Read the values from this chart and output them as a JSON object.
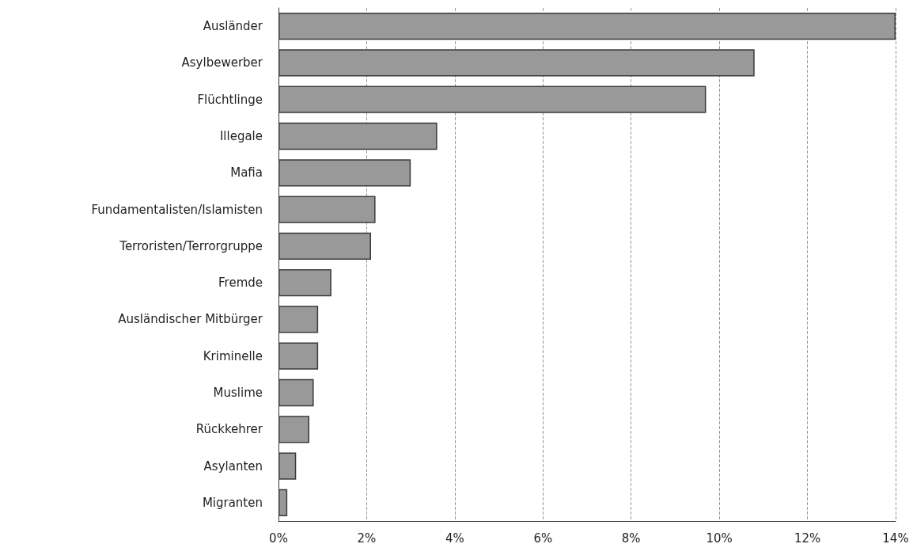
{
  "chart_data": {
    "type": "bar",
    "orientation": "horizontal",
    "categories": [
      "Ausländer",
      "Asylbewerber",
      "Flüchtlinge",
      "Illegale",
      "Mafia",
      "Fundamentalisten/Islamisten",
      "Terroristen/Terrorgruppe",
      "Fremde",
      "Ausländischer Mitbürger",
      "Kriminelle",
      "Muslime",
      "Rückkehrer",
      "Asylanten",
      "Migranten"
    ],
    "values": [
      14,
      10.8,
      9.7,
      3.6,
      3.0,
      2.2,
      2.1,
      1.2,
      0.9,
      0.9,
      0.8,
      0.7,
      0.4,
      0.2
    ],
    "color": "#999999",
    "xlim": [
      0,
      14
    ],
    "xticks": [
      {
        "value": 0,
        "label": "0%"
      },
      {
        "value": 2,
        "label": "2%"
      },
      {
        "value": 4,
        "label": "4%"
      },
      {
        "value": 6,
        "label": "6%"
      },
      {
        "value": 8,
        "label": "8%"
      },
      {
        "value": 10,
        "label": "10%"
      },
      {
        "value": 12,
        "label": "12%"
      },
      {
        "value": 14,
        "label": "14%"
      }
    ],
    "grid": "x"
  }
}
